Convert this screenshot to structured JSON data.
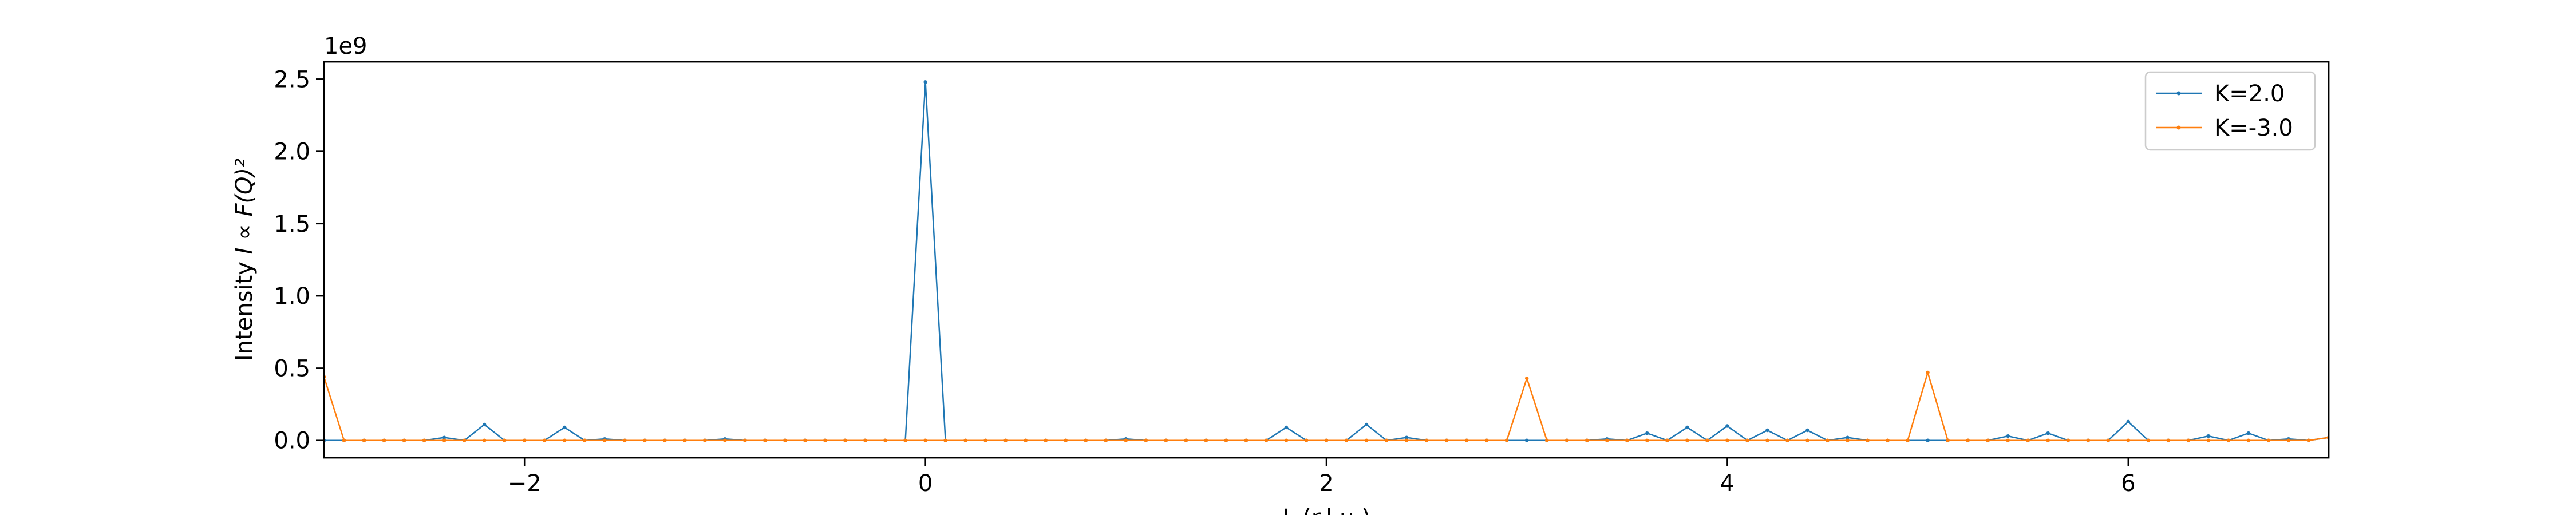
{
  "chart_data": {
    "type": "line",
    "title": "",
    "xlabel": "L (r.l.u.)",
    "ylabel_prefix": "Intensity ",
    "ylabel_formula": "I ∝ F(Q)²",
    "y_scale_label": "1e9",
    "xlim": [
      -3.0,
      7.0
    ],
    "ylim": [
      -0.12,
      2.62
    ],
    "y_unit_multiplier": 1000000000,
    "x_ticks": [
      -2,
      0,
      2,
      4,
      6
    ],
    "x_tick_labels": [
      "−2",
      "0",
      "2",
      "4",
      "6"
    ],
    "y_ticks": [
      0.0,
      0.5,
      1.0,
      1.5,
      2.0,
      2.5
    ],
    "y_tick_labels": [
      "0.0",
      "0.5",
      "1.0",
      "1.5",
      "2.0",
      "2.5"
    ],
    "grid": false,
    "legend_position": "upper-right",
    "x": [
      -3.0,
      -2.9,
      -2.8,
      -2.7,
      -2.6,
      -2.5,
      -2.4,
      -2.3,
      -2.2,
      -2.1,
      -2.0,
      -1.9,
      -1.8,
      -1.7,
      -1.6,
      -1.5,
      -1.4,
      -1.3,
      -1.2,
      -1.1,
      -1.0,
      -0.9,
      -0.8,
      -0.7,
      -0.6,
      -0.5,
      -0.4,
      -0.3,
      -0.2,
      -0.1,
      0.0,
      0.1,
      0.2,
      0.3,
      0.4,
      0.5,
      0.6,
      0.7,
      0.8,
      0.9,
      1.0,
      1.1,
      1.2,
      1.3,
      1.4,
      1.5,
      1.6,
      1.7,
      1.8,
      1.9,
      2.0,
      2.1,
      2.2,
      2.3,
      2.4,
      2.5,
      2.6,
      2.7,
      2.8,
      2.9,
      3.0,
      3.1,
      3.2,
      3.3,
      3.4,
      3.5,
      3.6,
      3.7,
      3.8,
      3.9,
      4.0,
      4.1,
      4.2,
      4.3,
      4.4,
      4.5,
      4.6,
      4.7,
      4.8,
      4.9,
      5.0,
      5.1,
      5.2,
      5.3,
      5.4,
      5.5,
      5.6,
      5.7,
      5.8,
      5.9,
      6.0,
      6.1,
      6.2,
      6.3,
      6.4,
      6.5,
      6.6,
      6.7,
      6.8,
      6.9,
      7.0
    ],
    "series": [
      {
        "name": "K=2.0",
        "color": "#1f77b4",
        "values": [
          0,
          0,
          0,
          0,
          0,
          0,
          0.02,
          0,
          0.11,
          0,
          0,
          0,
          0.09,
          0,
          0.01,
          0,
          0,
          0,
          0,
          0,
          0.01,
          0,
          0,
          0,
          0,
          0,
          0,
          0,
          0,
          0,
          2.48,
          0,
          0,
          0,
          0,
          0,
          0,
          0,
          0,
          0,
          0.01,
          0,
          0,
          0,
          0,
          0,
          0,
          0,
          0.09,
          0,
          0,
          0,
          0.11,
          0,
          0.02,
          0,
          0,
          0,
          0,
          0,
          0,
          0,
          0,
          0,
          0.01,
          0,
          0.05,
          0,
          0.09,
          0,
          0.1,
          0,
          0.07,
          0,
          0.07,
          0,
          0.02,
          0,
          0,
          0,
          0,
          0,
          0,
          0,
          0.03,
          0,
          0.05,
          0,
          0,
          0,
          0.13,
          0,
          0,
          0,
          0.03,
          0,
          0.05,
          0,
          0.01,
          0,
          0.02
        ]
      },
      {
        "name": "K=-3.0",
        "color": "#ff7f0e",
        "values": [
          0.44,
          0,
          0,
          0,
          0,
          0,
          0,
          0,
          0,
          0,
          0,
          0,
          0,
          0,
          0,
          0,
          0,
          0,
          0,
          0,
          0,
          0,
          0,
          0,
          0,
          0,
          0,
          0,
          0,
          0,
          0,
          0,
          0,
          0,
          0,
          0,
          0,
          0,
          0,
          0,
          0,
          0,
          0,
          0,
          0,
          0,
          0,
          0,
          0,
          0,
          0,
          0,
          0,
          0,
          0,
          0,
          0,
          0,
          0,
          0,
          0.43,
          0,
          0,
          0,
          0,
          0,
          0,
          0,
          0,
          0,
          0,
          0,
          0,
          0,
          0,
          0,
          0,
          0,
          0,
          0,
          0.47,
          0,
          0,
          0,
          0,
          0,
          0,
          0,
          0,
          0,
          0,
          0,
          0,
          0,
          0,
          0,
          0,
          0,
          0,
          0,
          0.02
        ]
      }
    ]
  }
}
